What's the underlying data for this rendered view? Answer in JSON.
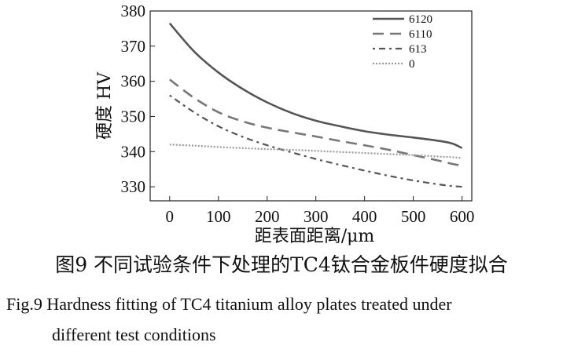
{
  "chart_data": {
    "type": "line",
    "x": [
      0,
      50,
      100,
      150,
      200,
      250,
      300,
      350,
      400,
      450,
      500,
      550,
      580,
      600
    ],
    "series": [
      {
        "name": "6120",
        "style": "solid",
        "color": "#555555",
        "values": [
          376.5,
          368.5,
          362.5,
          357.8,
          354.0,
          351.0,
          348.8,
          347.2,
          345.8,
          344.8,
          344.0,
          343.1,
          342.3,
          341.0
        ]
      },
      {
        "name": "6110",
        "style": "dashed",
        "color": "#777777",
        "values": [
          360.5,
          355.3,
          351.2,
          348.6,
          346.8,
          345.5,
          344.3,
          343.0,
          341.8,
          340.5,
          339.0,
          337.5,
          336.5,
          336.0
        ]
      },
      {
        "name": "613",
        "style": "dashdot",
        "color": "#555555",
        "values": [
          356.0,
          351.2,
          347.2,
          344.2,
          341.8,
          339.8,
          337.9,
          336.2,
          334.6,
          333.1,
          331.8,
          330.7,
          330.2,
          330.0
        ]
      },
      {
        "name": "0",
        "style": "dotted",
        "color": "#999999",
        "values": [
          342.0,
          341.7,
          341.3,
          341.0,
          340.7,
          340.5,
          340.2,
          339.9,
          339.6,
          339.3,
          339.0,
          338.6,
          338.4,
          338.2
        ]
      }
    ],
    "title": "",
    "xlabel": "距表面距离/μm",
    "ylabel": "硬度 HV",
    "xlim": [
      -40,
      620
    ],
    "ylim": [
      326,
      380
    ],
    "xticks": [
      0,
      100,
      200,
      300,
      400,
      500,
      600
    ],
    "yticks": [
      330,
      340,
      350,
      360,
      370,
      380
    ],
    "grid": false,
    "legend": "top-right"
  },
  "caption": {
    "cn": "图9  不同试验条件下处理的TC4钛合金板件硬度拟合",
    "en_line1": "Fig.9  Hardness fitting of TC4 titanium alloy plates treated under",
    "en_line2": "different test conditions"
  }
}
